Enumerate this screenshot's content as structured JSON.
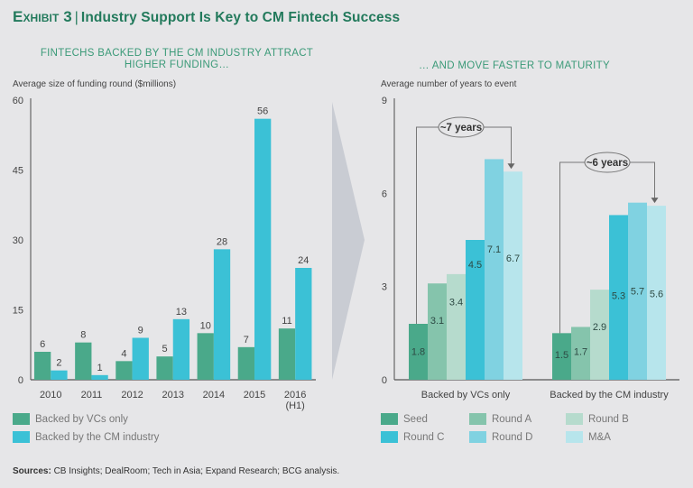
{
  "title": {
    "exhibit": "Exhibit 3",
    "separator": "|",
    "text": "Industry Support Is Key to CM Fintech Success"
  },
  "sources": {
    "label": "Sources:",
    "text": " CB Insights; DealRoom; Tech in Asia; Expand Research; BCG analysis."
  },
  "colors": {
    "title": "#237a5c",
    "vc": "#4aa98a",
    "cm": "#3bc1d6",
    "seed": "#4aa98a",
    "roundA": "#85c4ac",
    "roundB": "#b6dbcd",
    "roundC": "#3bc1d6",
    "roundD": "#80d2e1",
    "ma": "#b7e5ec",
    "arrow": "#c9ccd3"
  },
  "chart_data": [
    {
      "type": "bar",
      "title": "FINTECHS BACKED BY THE CM INDUSTRY ATTRACT HIGHER FUNDING…",
      "ylabel": "Average size of funding round ($millions)",
      "xlabel": "",
      "ylim": [
        0,
        60
      ],
      "yticks": [
        0,
        15,
        30,
        45,
        60
      ],
      "grid": false,
      "categories": [
        "2010",
        "2011",
        "2012",
        "2013",
        "2014",
        "2015",
        "2016\n(H1)"
      ],
      "category_lines": [
        [
          "2010"
        ],
        [
          "2011"
        ],
        [
          "2012"
        ],
        [
          "2013"
        ],
        [
          "2014"
        ],
        [
          "2015"
        ],
        [
          "2016",
          "(H1)"
        ]
      ],
      "series": [
        {
          "name": "Backed by VCs only",
          "color_key": "vc",
          "values": [
            6,
            8,
            4,
            5,
            10,
            7,
            11
          ]
        },
        {
          "name": "Backed by the CM industry",
          "color_key": "cm",
          "values": [
            2,
            1,
            9,
            13,
            28,
            56,
            24
          ]
        }
      ],
      "legend_position": "bottom-left"
    },
    {
      "type": "bar",
      "title": "… AND MOVE FASTER TO MATURITY",
      "ylabel": "Average number of years to event",
      "xlabel": "",
      "ylim": [
        0,
        9
      ],
      "yticks": [
        0,
        3,
        6,
        9
      ],
      "grid": false,
      "categories": [
        "Backed by VCs only",
        "Backed by the CM industry"
      ],
      "series": [
        {
          "name": "Seed",
          "color_key": "seed",
          "values": [
            1.8,
            1.5
          ]
        },
        {
          "name": "Round A",
          "color_key": "roundA",
          "values": [
            3.1,
            1.7
          ]
        },
        {
          "name": "Round B",
          "color_key": "roundB",
          "values": [
            3.4,
            2.9
          ]
        },
        {
          "name": "Round C",
          "color_key": "roundC",
          "values": [
            4.5,
            5.3
          ]
        },
        {
          "name": "Round D",
          "color_key": "roundD",
          "values": [
            7.1,
            5.7
          ]
        },
        {
          "name": "M&A",
          "color_key": "ma",
          "values": [
            6.7,
            5.6
          ]
        }
      ],
      "annotations": [
        {
          "group": "Backed by VCs only",
          "text": "~7 years",
          "from": "Seed",
          "to": "M&A"
        },
        {
          "group": "Backed by the CM industry",
          "text": "~6 years",
          "from": "Seed",
          "to": "M&A"
        }
      ],
      "legend_position": "bottom"
    }
  ]
}
